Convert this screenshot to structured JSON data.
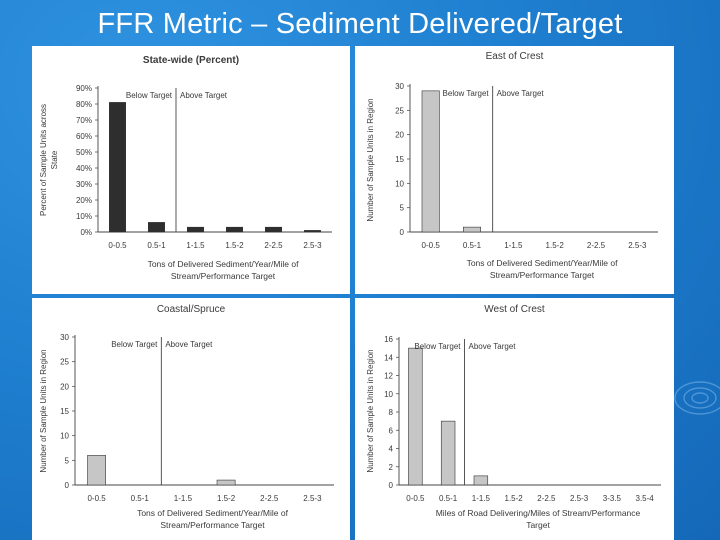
{
  "slide": {
    "title": "FFR Metric – Sediment Delivered/Target"
  },
  "chart_data": [
    {
      "type": "bar",
      "title": "State-wide (Percent)",
      "title_bold": true,
      "categories": [
        "0-0.5",
        "0.5-1",
        "1-1.5",
        "1.5-2",
        "2-2.5",
        "2.5-3"
      ],
      "values": [
        81,
        6,
        3,
        3,
        3,
        1
      ],
      "ylim": [
        0,
        90
      ],
      "yticks": [
        "0%",
        "10%",
        "20%",
        "30%",
        "40%",
        "50%",
        "60%",
        "70%",
        "80%",
        "90%"
      ],
      "ylabel": [
        "Percent of Sample Units across",
        "State"
      ],
      "xlabel": [
        "Tons of Delivered Sediment/Year/Mile of",
        "Stream/Performance Target"
      ],
      "bar_color": "#2e2e2e",
      "target_after_index": 1,
      "below_label": "Below Target",
      "above_label": "Above Target"
    },
    {
      "type": "bar",
      "title": "East of Crest",
      "title_bold": false,
      "categories": [
        "0-0.5",
        "0.5-1",
        "1-1.5",
        "1.5-2",
        "2-2.5",
        "2.5-3"
      ],
      "values": [
        29,
        1,
        0,
        0,
        0,
        0
      ],
      "ylim": [
        0,
        30
      ],
      "yticks": [
        "0",
        "5",
        "10",
        "15",
        "20",
        "25",
        "30"
      ],
      "ylabel": [
        "Number of Sample Units in Region"
      ],
      "xlabel": [
        "Tons of Delivered Sediment/Year/Mile of",
        "Stream/Performance Target"
      ],
      "bar_color": "#c6c6c6",
      "target_after_index": 1,
      "below_label": "Below Target",
      "above_label": "Above Target"
    },
    {
      "type": "bar",
      "title": "Coastal/Spruce",
      "title_bold": false,
      "categories": [
        "0-0.5",
        "0.5-1",
        "1-1.5",
        "1.5-2",
        "2-2.5",
        "2.5-3"
      ],
      "values": [
        6,
        0,
        0,
        1,
        0,
        0
      ],
      "ylim": [
        0,
        30
      ],
      "yticks": [
        "0",
        "5",
        "10",
        "15",
        "20",
        "25",
        "30"
      ],
      "ylabel": [
        "Number of Sample Units in Region"
      ],
      "xlabel": [
        "Tons of Delivered Sediment/Year/Mile of",
        "Stream/Performance Target"
      ],
      "bar_color": "#c6c6c6",
      "target_after_index": 1,
      "below_label": "Below Target",
      "above_label": "Above Target"
    },
    {
      "type": "bar",
      "title": "West of Crest",
      "title_bold": false,
      "categories": [
        "0-0.5",
        "0.5-1",
        "1-1.5",
        "1.5-2",
        "2-2.5",
        "2.5-3",
        "3-3.5",
        "3.5-4"
      ],
      "values": [
        15,
        7,
        1,
        0,
        0,
        0,
        0,
        0
      ],
      "ylim": [
        0,
        16
      ],
      "yticks": [
        "0",
        "2",
        "4",
        "6",
        "8",
        "10",
        "12",
        "14",
        "16"
      ],
      "ylabel": [
        "Number of Sample Units in Region"
      ],
      "xlabel": [
        "Miles of Road Delivering/Miles of Stream/Performance",
        "Target"
      ],
      "bar_color": "#c6c6c6",
      "target_after_index": 1,
      "below_label": "Below Target",
      "above_label": "Above Target"
    }
  ]
}
